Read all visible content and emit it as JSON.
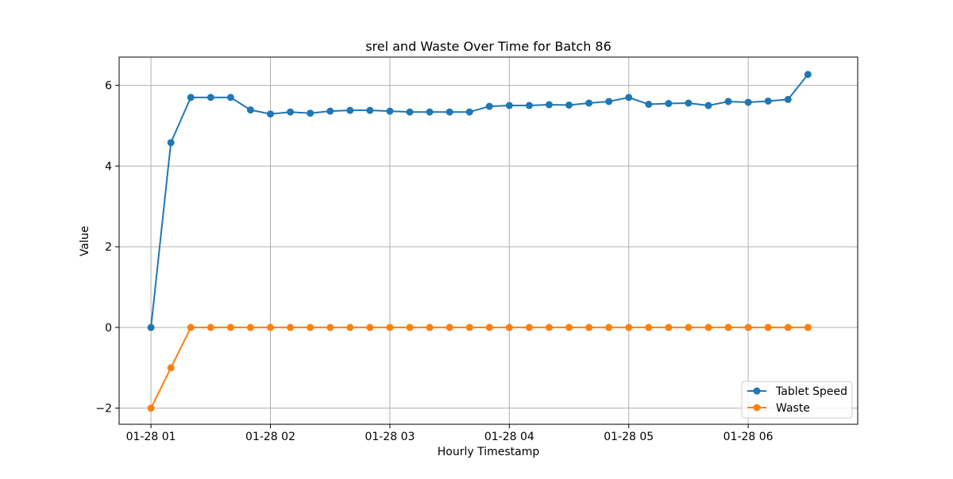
{
  "chart_data": {
    "type": "line",
    "title": "srel and Waste Over Time for Batch 86",
    "xlabel": "Hourly Timestamp",
    "ylabel": "Value",
    "xlim": [
      "01-28 00:44",
      "01-28 06:55"
    ],
    "ylim": [
      -2.4,
      6.7
    ],
    "x_ticks": [
      "01-28 01",
      "01-28 02",
      "01-28 03",
      "01-28 04",
      "01-28 05",
      "01-28 06"
    ],
    "y_ticks": [
      -2,
      0,
      2,
      4,
      6
    ],
    "y_tick_labels": [
      "−2",
      "0",
      "2",
      "4",
      "6"
    ],
    "grid": true,
    "legend_position": "lower-right",
    "x": [
      "01-28 01:00",
      "01-28 01:10",
      "01-28 01:20",
      "01-28 01:30",
      "01-28 01:40",
      "01-28 01:50",
      "01-28 02:00",
      "01-28 02:10",
      "01-28 02:20",
      "01-28 02:30",
      "01-28 02:40",
      "01-28 02:50",
      "01-28 03:00",
      "01-28 03:10",
      "01-28 03:20",
      "01-28 03:30",
      "01-28 03:40",
      "01-28 03:50",
      "01-28 04:00",
      "01-28 04:10",
      "01-28 04:20",
      "01-28 04:30",
      "01-28 04:40",
      "01-28 04:50",
      "01-28 05:00",
      "01-28 05:10",
      "01-28 05:20",
      "01-28 05:30",
      "01-28 05:40",
      "01-28 05:50",
      "01-28 06:00",
      "01-28 06:10",
      "01-28 06:20",
      "01-28 06:30"
    ],
    "series": [
      {
        "name": "Tablet Speed",
        "color": "#1f77b4",
        "values": [
          0,
          4.58,
          5.7,
          5.7,
          5.7,
          5.39,
          5.29,
          5.34,
          5.31,
          5.36,
          5.38,
          5.38,
          5.36,
          5.34,
          5.34,
          5.34,
          5.34,
          5.48,
          5.5,
          5.5,
          5.52,
          5.51,
          5.56,
          5.6,
          5.7,
          5.53,
          5.55,
          5.56,
          5.5,
          5.6,
          5.58,
          5.61,
          5.65,
          6.27
        ]
      },
      {
        "name": "Waste",
        "color": "#ff7f0e",
        "values": [
          -2,
          -1,
          0,
          0,
          0,
          0,
          0,
          0,
          0,
          0,
          0,
          0,
          0,
          0,
          0,
          0,
          0,
          0,
          0,
          0,
          0,
          0,
          0,
          0,
          0,
          0,
          0,
          0,
          0,
          0,
          0,
          0,
          0,
          0
        ]
      }
    ]
  }
}
